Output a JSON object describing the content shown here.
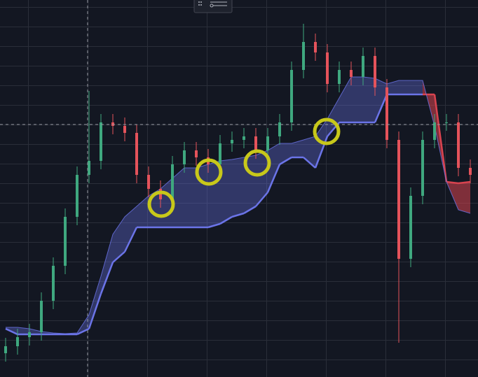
{
  "chart_data": {
    "type": "candlestick",
    "ylim": [
      0,
      539
    ],
    "grid": true,
    "up_color": "#3fa87f",
    "down_color": "#e5535b",
    "cloud_up_color": "#6b74e8",
    "cloud_down_color": "#d9434f",
    "open": [
      34,
      44,
      57,
      64,
      109,
      159,
      229,
      289,
      309,
      364,
      359,
      349,
      289,
      269,
      254,
      304,
      324,
      314,
      304,
      334,
      339,
      344,
      324,
      344,
      364,
      439,
      479,
      464,
      419,
      439,
      429,
      459,
      414,
      339,
      169,
      259,
      339,
      364,
      364,
      299
    ],
    "high": [
      56,
      69,
      76,
      121,
      171,
      241,
      301,
      409,
      376,
      376,
      371,
      361,
      301,
      281,
      316,
      336,
      336,
      326,
      346,
      351,
      356,
      356,
      356,
      376,
      451,
      505,
      491,
      476,
      451,
      451,
      471,
      471,
      426,
      351,
      271,
      351,
      376,
      376,
      376,
      311
    ],
    "low": [
      22,
      32,
      45,
      52,
      97,
      147,
      217,
      277,
      297,
      347,
      337,
      277,
      257,
      242,
      242,
      292,
      302,
      292,
      292,
      322,
      327,
      312,
      312,
      332,
      352,
      427,
      452,
      407,
      407,
      417,
      417,
      402,
      327,
      49,
      157,
      247,
      327,
      352,
      287,
      277
    ],
    "close": [
      44,
      57,
      64,
      109,
      159,
      229,
      289,
      309,
      364,
      359,
      349,
      289,
      269,
      254,
      304,
      324,
      314,
      304,
      334,
      339,
      344,
      324,
      344,
      364,
      439,
      479,
      464,
      419,
      439,
      429,
      459,
      414,
      339,
      169,
      259,
      339,
      364,
      364,
      299,
      289
    ],
    "span_a": [
      71,
      71,
      69,
      65,
      63,
      62,
      63,
      89,
      144,
      204,
      229,
      244,
      259,
      269,
      284,
      299,
      299,
      304,
      309,
      311,
      314,
      317,
      324,
      334,
      334,
      339,
      344,
      369,
      399,
      429,
      429,
      427,
      419,
      424,
      424,
      424,
      359,
      279,
      239,
      234
    ],
    "span_b": [
      69,
      61,
      61,
      61,
      61,
      61,
      61,
      69,
      119,
      164,
      179,
      214,
      214,
      214,
      214,
      214,
      214,
      214,
      219,
      229,
      234,
      244,
      264,
      304,
      314,
      314,
      299,
      344,
      364,
      364,
      364,
      364,
      404,
      404,
      404,
      404,
      404,
      279,
      277,
      279
    ]
  }
}
